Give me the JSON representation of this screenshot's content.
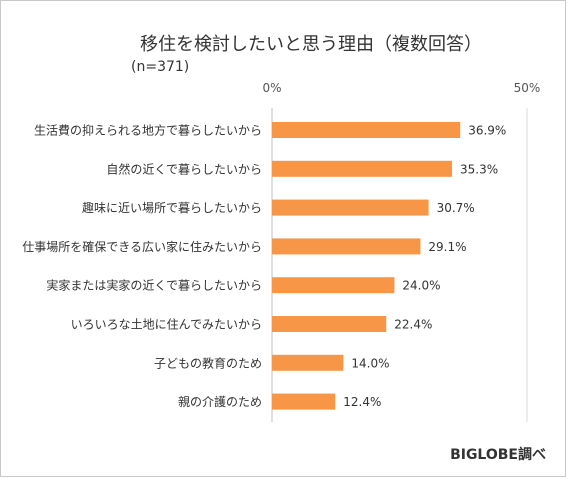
{
  "chart_data": {
    "type": "bar",
    "orientation": "horizontal",
    "title": "移住を検討したいと思う理由（複数回答）",
    "subtitle": "(n=371)",
    "source": "BIGLOBE調べ",
    "x_ticks": [
      "0%",
      "50%"
    ],
    "xlim": [
      0,
      50
    ],
    "grid": true,
    "bar_color": "#f79646",
    "categories": [
      "生活費の抑えられる地方で暮らしたいから",
      "自然の近くで暮らしたいから",
      "趣味に近い場所で暮らしたいから",
      "仕事場所を確保できる広い家に住みたいから",
      "実家または実家の近くで暮らしたいから",
      "いろいろな土地に住んでみたいから",
      "子どもの教育のため",
      "親の介護のため"
    ],
    "values": [
      36.9,
      35.3,
      30.7,
      29.1,
      24.0,
      22.4,
      14.0,
      12.4
    ],
    "value_labels": [
      "36.9%",
      "35.3%",
      "30.7%",
      "29.1%",
      "24.0%",
      "22.4%",
      "14.0%",
      "12.4%"
    ]
  }
}
